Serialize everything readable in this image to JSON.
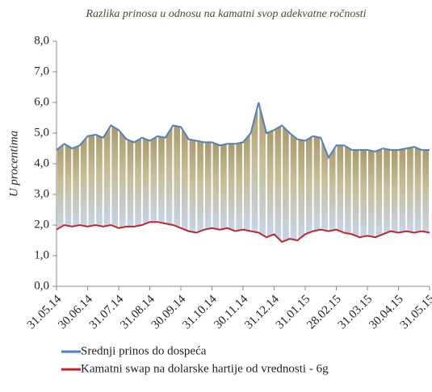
{
  "chart_data": {
    "type": "line",
    "title": "Razlika prinosa u odnosu na kamatni svop adekvatne ročnosti",
    "y_label": "U procentima",
    "categories": [
      "31.05.14",
      null,
      null,
      null,
      "30.06.14",
      null,
      null,
      null,
      "31.07.14",
      null,
      null,
      null,
      "31.08.14",
      null,
      null,
      null,
      "30.09.14",
      null,
      null,
      null,
      "31.10.14",
      null,
      null,
      null,
      "30.11.14",
      null,
      null,
      null,
      "31.12.14",
      null,
      null,
      null,
      "31.01.15",
      null,
      null,
      null,
      "28.02.15",
      null,
      null,
      null,
      "31.03.15",
      null,
      null,
      null,
      "30.04.15",
      null,
      null,
      null,
      "31.05.15"
    ],
    "series": [
      {
        "name": "Srednji prinos do dospeća",
        "color": "#4f81bd",
        "values": [
          4.45,
          4.65,
          4.5,
          4.6,
          4.9,
          4.95,
          4.85,
          5.25,
          5.1,
          4.8,
          4.7,
          4.85,
          4.75,
          4.9,
          4.85,
          5.25,
          5.2,
          4.8,
          4.75,
          4.7,
          4.7,
          4.6,
          4.65,
          4.65,
          4.7,
          5.0,
          6.0,
          5.0,
          5.1,
          5.25,
          5.0,
          4.8,
          4.75,
          4.9,
          4.85,
          4.2,
          4.6,
          4.6,
          4.45,
          4.45,
          4.45,
          4.4,
          4.5,
          4.45,
          4.45,
          4.5,
          4.55,
          4.45,
          4.45
        ]
      },
      {
        "name": "Kamatni swap na dolarske hartije od vrednosti - 6g",
        "color": "#c0272d",
        "values": [
          1.85,
          2.0,
          1.95,
          2.0,
          1.95,
          2.0,
          1.95,
          2.0,
          1.9,
          1.95,
          1.95,
          2.0,
          2.1,
          2.1,
          2.05,
          2.0,
          1.9,
          1.8,
          1.75,
          1.85,
          1.9,
          1.85,
          1.9,
          1.8,
          1.85,
          1.8,
          1.75,
          1.6,
          1.7,
          1.45,
          1.55,
          1.5,
          1.7,
          1.8,
          1.85,
          1.8,
          1.85,
          1.75,
          1.7,
          1.6,
          1.65,
          1.6,
          1.7,
          1.8,
          1.75,
          1.8,
          1.75,
          1.8,
          1.75
        ]
      }
    ],
    "ylim": [
      0,
      8
    ],
    "yticks": [
      {
        "value": 0,
        "label": "0,0"
      },
      {
        "value": 1,
        "label": "1,0"
      },
      {
        "value": 2,
        "label": "2,0"
      },
      {
        "value": 3,
        "label": "3,0"
      },
      {
        "value": 4,
        "label": "4,0"
      },
      {
        "value": 5,
        "label": "5,0"
      },
      {
        "value": 6,
        "label": "6,0"
      },
      {
        "value": 7,
        "label": "7,0"
      },
      {
        "value": 8,
        "label": "8,0"
      }
    ]
  }
}
